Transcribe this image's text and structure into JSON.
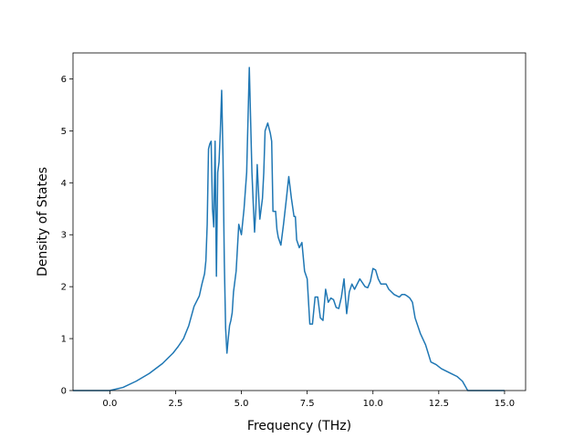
{
  "chart_data": {
    "type": "line",
    "title": "",
    "xlabel": "Frequency (THz)",
    "ylabel": "Density of States",
    "xlim": [
      -1.4,
      15.8
    ],
    "ylim": [
      0,
      6.5
    ],
    "xticks": [
      0.0,
      2.5,
      5.0,
      7.5,
      10.0,
      12.5,
      15.0
    ],
    "xtick_labels": [
      "0.0",
      "2.5",
      "5.0",
      "7.5",
      "10.0",
      "12.5",
      "15.0"
    ],
    "yticks": [
      0,
      1,
      2,
      3,
      4,
      5,
      6
    ],
    "ytick_labels": [
      "0",
      "1",
      "2",
      "3",
      "4",
      "5",
      "6"
    ],
    "grid": false,
    "series": [
      {
        "color": "#1f77b4",
        "x": [
          -1.4,
          -0.5,
          0.0,
          0.5,
          1.0,
          1.5,
          2.0,
          2.4,
          2.6,
          2.8,
          3.0,
          3.2,
          3.3,
          3.4,
          3.5,
          3.6,
          3.65,
          3.7,
          3.75,
          3.8,
          3.85,
          3.9,
          3.95,
          4.0,
          4.05,
          4.1,
          4.15,
          4.2,
          4.25,
          4.3,
          4.35,
          4.4,
          4.45,
          4.5,
          4.55,
          4.6,
          4.65,
          4.7,
          4.8,
          4.9,
          5.0,
          5.1,
          5.2,
          5.3,
          5.4,
          5.45,
          5.5,
          5.55,
          5.6,
          5.7,
          5.8,
          5.85,
          5.9,
          6.0,
          6.05,
          6.1,
          6.15,
          6.2,
          6.3,
          6.35,
          6.4,
          6.5,
          6.6,
          6.7,
          6.8,
          6.9,
          7.0,
          7.05,
          7.1,
          7.2,
          7.3,
          7.4,
          7.5,
          7.6,
          7.7,
          7.8,
          7.9,
          8.0,
          8.1,
          8.2,
          8.3,
          8.4,
          8.5,
          8.6,
          8.7,
          8.8,
          8.9,
          9.0,
          9.1,
          9.2,
          9.3,
          9.5,
          9.7,
          9.8,
          9.9,
          10.0,
          10.1,
          10.2,
          10.3,
          10.4,
          10.5,
          10.6,
          10.8,
          11.0,
          11.1,
          11.2,
          11.3,
          11.4,
          11.5,
          11.6,
          11.8,
          12.0,
          12.2,
          12.4,
          12.6,
          12.8,
          13.0,
          13.2,
          13.4,
          13.6,
          13.7,
          13.8,
          14.2,
          14.6,
          15.0
        ],
        "y": [
          0.0,
          0.0,
          0.0,
          0.06,
          0.18,
          0.33,
          0.52,
          0.72,
          0.85,
          1.0,
          1.25,
          1.62,
          1.72,
          1.82,
          2.05,
          2.25,
          2.5,
          3.2,
          4.65,
          4.75,
          4.8,
          3.5,
          3.15,
          4.8,
          2.2,
          4.2,
          4.4,
          5.0,
          5.78,
          4.5,
          2.5,
          1.2,
          0.72,
          1.0,
          1.25,
          1.35,
          1.5,
          1.9,
          2.3,
          3.2,
          3.0,
          3.5,
          4.2,
          6.22,
          4.2,
          3.6,
          3.05,
          3.5,
          4.35,
          3.3,
          3.7,
          4.2,
          5.0,
          5.15,
          5.05,
          4.95,
          4.8,
          3.45,
          3.45,
          3.1,
          2.95,
          2.8,
          3.2,
          3.65,
          4.12,
          3.7,
          3.35,
          3.35,
          2.9,
          2.75,
          2.85,
          2.3,
          2.15,
          1.28,
          1.28,
          1.8,
          1.8,
          1.4,
          1.35,
          1.95,
          1.7,
          1.78,
          1.75,
          1.6,
          1.58,
          1.8,
          2.15,
          1.48,
          1.9,
          2.05,
          1.95,
          2.15,
          2.0,
          1.98,
          2.1,
          2.35,
          2.32,
          2.15,
          2.05,
          2.05,
          2.05,
          1.95,
          1.85,
          1.8,
          1.85,
          1.85,
          1.82,
          1.78,
          1.7,
          1.4,
          1.1,
          0.88,
          0.55,
          0.5,
          0.42,
          0.37,
          0.32,
          0.27,
          0.18,
          0.0,
          0.0,
          0.0,
          0.0,
          0.0,
          0.0
        ]
      }
    ]
  }
}
